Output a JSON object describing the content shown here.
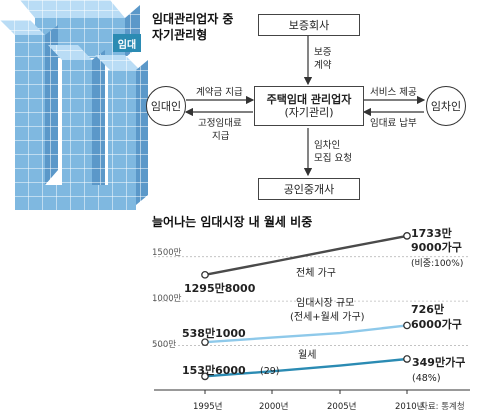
{
  "graphic": {
    "badge": "임대"
  },
  "diagram": {
    "title_line1": "임대관리업자 중",
    "title_line2": "자기관리형",
    "boxes": {
      "guarantor": "보증회사",
      "center_line1": "주택임대 관리업자",
      "center_line2": "(자기관리)",
      "broker": "공인중개사"
    },
    "nodes": {
      "landlord": "임대인",
      "tenant": "임차인"
    },
    "edges": {
      "guarantee_l1": "보증",
      "guarantee_l2": "계약",
      "contract_deposit": "계약금 지급",
      "fixed_rent_l1": "고정임대료",
      "fixed_rent_l2": "지급",
      "service": "서비스 제공",
      "rent_payment": "임대료 납부",
      "tenant_request_l1": "임차인",
      "tenant_request_l2": "모집 요청"
    }
  },
  "chart": {
    "title": "늘어나는 임대시장 내 월세 비중",
    "source": "자료: 통계청",
    "y_ticks": [
      "1500만",
      "1000만",
      "500만"
    ],
    "x_ticks": [
      "1995년",
      "2000년",
      "2005년",
      "2010년"
    ],
    "annotations": {
      "total_start": "1295만8000",
      "total_end_l1": "1733만",
      "total_end_l2": "9000가구",
      "total_end_l3": "(비중:100%)",
      "total_name": "전체 가구",
      "market_start": "538만1000",
      "market_end_l1": "726만",
      "market_end_l2": "6000가구",
      "market_name_l1": "임대시장 규모",
      "market_name_l2": "(전세+월세 가구)",
      "monthly_start": "153만6000",
      "monthly_start_pct": "(29)",
      "monthly_end_l1": "349만가구",
      "monthly_end_l2": "(48%)",
      "monthly_name": "월세"
    }
  },
  "chart_data": {
    "type": "line",
    "title": "늘어나는 임대시장 내 월세 비중",
    "x": [
      1995,
      2000,
      2005,
      2010
    ],
    "x_tick_labels": [
      "1995년",
      "2000년",
      "2005년",
      "2010년"
    ],
    "ylim": [
      0,
      1800
    ],
    "y_ticks": [
      500,
      1000,
      1500
    ],
    "y_unit": "만",
    "series": [
      {
        "name": "전체 가구",
        "values": [
          1295.8,
          1440,
          1590,
          1733.9
        ],
        "color": "#4a4a4a"
      },
      {
        "name": "임대시장 규모",
        "values": [
          538.1,
          590,
          640,
          726.6
        ],
        "color": "#8ec9ea"
      },
      {
        "name": "월세",
        "values": [
          153.6,
          210,
          275,
          349
        ],
        "color": "#2b8bb3"
      }
    ]
  },
  "colors": {
    "accent": "#2b8bb3",
    "light_accent": "#8ec9ea",
    "dark_line": "#4a4a4a",
    "cube_face": "#7fb8e0",
    "cube_top": "#b9dcf5",
    "cube_side": "#4f8fc2"
  }
}
